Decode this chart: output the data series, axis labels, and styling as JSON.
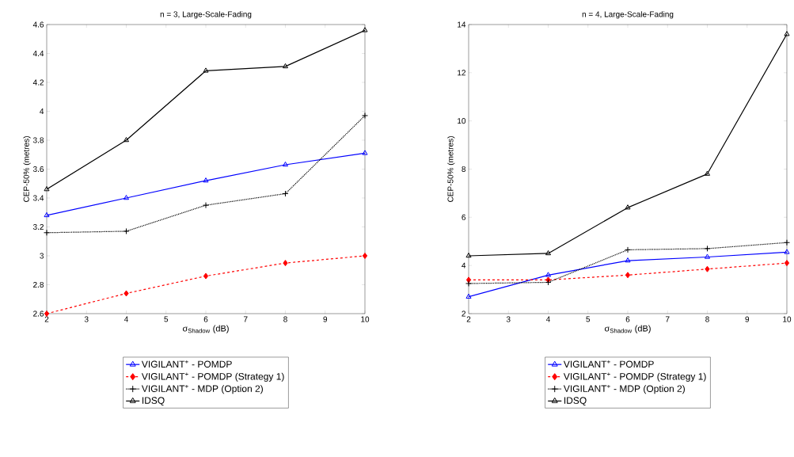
{
  "chart_data": [
    {
      "type": "line",
      "title": "n = 3, Large-Scale-Fading",
      "xlabel": "σ$_{Shadow}$ (dB)",
      "ylabel": "CEP-50% (metres)",
      "x": [
        2,
        4,
        6,
        8,
        10
      ],
      "xlim": [
        2,
        10
      ],
      "xticks": [
        2,
        3,
        4,
        5,
        6,
        7,
        8,
        9,
        10
      ],
      "ylim": [
        2.6,
        4.6
      ],
      "yticks": [
        2.6,
        2.8,
        3,
        3.2,
        3.4,
        3.6,
        3.8,
        4,
        4.2,
        4.4,
        4.6
      ],
      "grid": false,
      "legend": "bottom",
      "series": [
        {
          "name": "VIGILANT$^{+}$ - POMDP",
          "color": "#0000ff",
          "marker": "triangle",
          "line_style": "solid",
          "values": [
            3.28,
            3.4,
            3.52,
            3.63,
            3.71
          ]
        },
        {
          "name": "VIGILANT$^{+}$ - POMDP (Strategy 1)",
          "color": "#ff0000",
          "marker": "diamond",
          "line_style": "dashed",
          "values": [
            2.6,
            2.74,
            2.86,
            2.95,
            3.0
          ]
        },
        {
          "name": "VIGILANT$^{+}$ - MDP (Option 2)",
          "color": "#000000",
          "marker": "cross",
          "line_style": "dotted",
          "values": [
            3.16,
            3.17,
            3.35,
            3.43,
            3.97
          ]
        },
        {
          "name": "IDSQ",
          "color": "#000000",
          "marker": "triangle",
          "line_style": "solid",
          "values": [
            3.46,
            3.8,
            4.28,
            4.31,
            4.56
          ]
        }
      ]
    },
    {
      "type": "line",
      "title": "n = 4, Large-Scale-Fading",
      "xlabel": "σ$_{Shadow}$ (dB)",
      "ylabel": "CEP-50% (metres)",
      "x": [
        2,
        4,
        6,
        8,
        10
      ],
      "xlim": [
        2,
        10
      ],
      "xticks": [
        2,
        3,
        4,
        5,
        6,
        7,
        8,
        9,
        10
      ],
      "ylim": [
        2,
        14
      ],
      "yticks": [
        2,
        4,
        6,
        8,
        10,
        12,
        14
      ],
      "grid": false,
      "legend": "bottom",
      "series": [
        {
          "name": "VIGILANT$^{+}$ - POMDP",
          "color": "#0000ff",
          "marker": "triangle",
          "line_style": "solid",
          "values": [
            2.7,
            3.6,
            4.2,
            4.35,
            4.55
          ]
        },
        {
          "name": "VIGILANT$^{+}$ - POMDP (Strategy 1)",
          "color": "#ff0000",
          "marker": "diamond",
          "line_style": "dashed",
          "values": [
            3.4,
            3.4,
            3.6,
            3.85,
            4.1
          ]
        },
        {
          "name": "VIGILANT$^{+}$ - MDP (Option 2)",
          "color": "#000000",
          "marker": "cross",
          "line_style": "dotted",
          "values": [
            3.25,
            3.3,
            4.65,
            4.7,
            4.95
          ]
        },
        {
          "name": "IDSQ",
          "color": "#000000",
          "marker": "triangle",
          "line_style": "solid",
          "values": [
            4.4,
            4.5,
            6.4,
            7.8,
            13.6
          ]
        }
      ]
    }
  ]
}
